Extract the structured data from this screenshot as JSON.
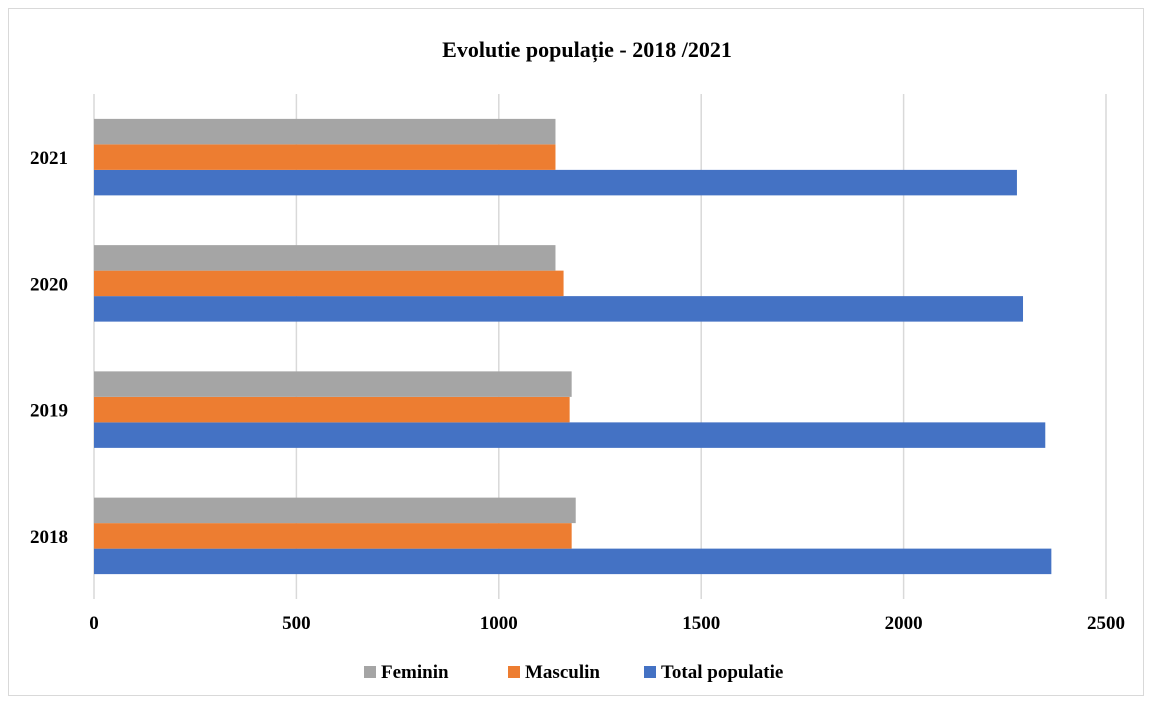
{
  "chart_data": {
    "type": "bar",
    "orientation": "horizontal",
    "title": "Evolutie populație - 2018 /2021",
    "xlabel": "",
    "ylabel": "",
    "categories": [
      "2018",
      "2019",
      "2020",
      "2021"
    ],
    "series": [
      {
        "name": "Total populatie",
        "color": "#4472c4",
        "values": [
          2365,
          2350,
          2295,
          2280
        ]
      },
      {
        "name": "Masculin",
        "color": "#ed7d31",
        "values": [
          1180,
          1175,
          1160,
          1140
        ]
      },
      {
        "name": "Feminin",
        "color": "#a5a5a5",
        "values": [
          1190,
          1180,
          1140,
          1140
        ]
      }
    ],
    "xlim": [
      0,
      2500
    ],
    "x_ticks": [
      "0",
      "500",
      "1000",
      "1500",
      "2000",
      "2500"
    ],
    "grid": true,
    "legend_position": "bottom",
    "legend_order": [
      "Feminin",
      "Masculin",
      "Total populatie"
    ]
  }
}
